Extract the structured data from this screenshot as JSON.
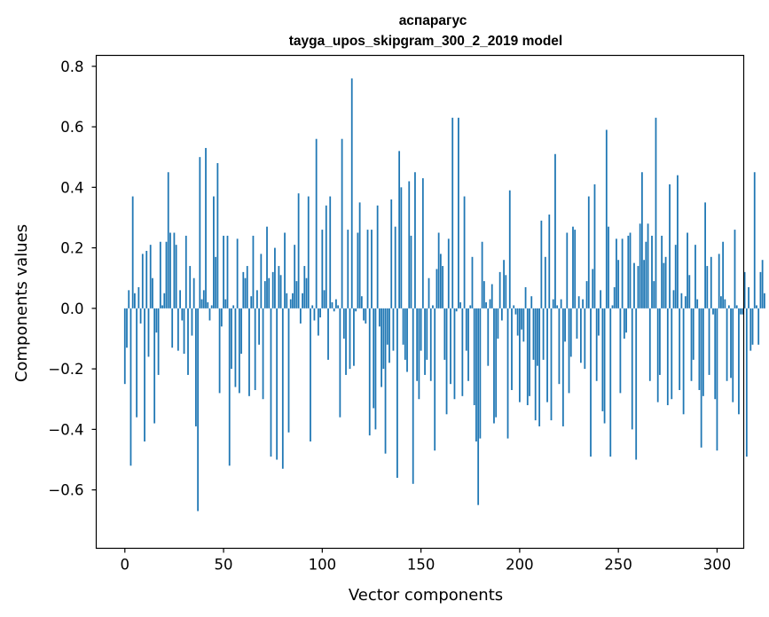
{
  "chart_data": {
    "type": "bar",
    "title": "аспарагус",
    "subtitle": "tayga_upos_skipgram_300_2_2019 model",
    "xlabel": "Vector components",
    "ylabel": "Components values",
    "xlim": [
      -14.5,
      313.5
    ],
    "ylim": [
      -0.793,
      0.836
    ],
    "xticks": [
      0,
      50,
      100,
      150,
      200,
      250,
      300
    ],
    "yticks": [
      -0.6,
      -0.4,
      -0.2,
      0.0,
      0.2,
      0.4,
      0.6,
      0.8
    ],
    "ytick_labels": [
      "−0.6",
      "−0.4",
      "−0.2",
      "0.0",
      "0.2",
      "0.4",
      "0.6",
      "0.8"
    ],
    "bar_color": "#1f77b4",
    "grid": false,
    "values": [
      -0.25,
      -0.13,
      0.06,
      -0.52,
      0.37,
      0.05,
      -0.36,
      0.07,
      -0.05,
      0.18,
      -0.44,
      0.19,
      -0.16,
      0.21,
      0.1,
      -0.38,
      -0.08,
      -0.22,
      0.22,
      0.01,
      0.05,
      0.22,
      0.45,
      0.25,
      -0.13,
      0.25,
      0.21,
      -0.14,
      0.06,
      -0.04,
      -0.15,
      0.24,
      -0.22,
      0.14,
      -0.09,
      0.1,
      -0.39,
      -0.67,
      0.5,
      0.03,
      0.06,
      0.53,
      0.02,
      -0.04,
      0.01,
      0.37,
      0.17,
      0.48,
      -0.28,
      -0.06,
      0.24,
      0.03,
      0.24,
      -0.52,
      -0.2,
      0.01,
      -0.26,
      0.23,
      -0.28,
      -0.15,
      0.12,
      0.1,
      0.14,
      -0.29,
      0.04,
      0.24,
      -0.27,
      0.06,
      -0.12,
      0.18,
      -0.3,
      0.09,
      0.27,
      0.1,
      -0.49,
      0.12,
      0.2,
      -0.5,
      0.14,
      0.11,
      -0.53,
      0.25,
      0.05,
      -0.41,
      0.03,
      0.05,
      0.21,
      0.09,
      0.38,
      -0.05,
      0.05,
      0.14,
      0.1,
      0.37,
      -0.44,
      0.01,
      -0.04,
      0.56,
      -0.09,
      -0.03,
      0.26,
      0.06,
      0.34,
      -0.17,
      0.37,
      0.02,
      -0.01,
      0.03,
      0.01,
      -0.36,
      0.56,
      -0.1,
      -0.22,
      0.26,
      -0.2,
      0.76,
      -0.19,
      -0.01,
      0.25,
      0.35,
      0.04,
      -0.04,
      -0.05,
      0.26,
      -0.42,
      0.26,
      -0.33,
      -0.4,
      0.34,
      -0.06,
      -0.26,
      -0.2,
      -0.48,
      -0.12,
      -0.18,
      0.36,
      -0.14,
      0.27,
      -0.56,
      0.52,
      0.4,
      -0.12,
      -0.17,
      -0.21,
      0.42,
      0.24,
      -0.58,
      0.45,
      -0.24,
      -0.3,
      -0.14,
      0.43,
      -0.22,
      -0.17,
      0.1,
      -0.24,
      0.01,
      -0.47,
      0.13,
      0.25,
      0.18,
      0.14,
      -0.17,
      -0.35,
      0.23,
      -0.25,
      0.63,
      -0.3,
      -0.01,
      0.63,
      0.02,
      -0.29,
      0.37,
      -0.14,
      -0.24,
      0.01,
      0.17,
      -0.32,
      -0.44,
      -0.65,
      -0.43,
      0.22,
      0.09,
      0.02,
      -0.19,
      0.03,
      0.08,
      -0.38,
      -0.36,
      -0.1,
      0.12,
      -0.04,
      0.16,
      0.11,
      -0.43,
      0.39,
      -0.27,
      0.01,
      -0.02,
      -0.09,
      -0.31,
      -0.07,
      -0.11,
      0.07,
      -0.32,
      -0.29,
      0.04,
      -0.17,
      -0.37,
      -0.19,
      -0.39,
      0.29,
      -0.17,
      0.17,
      -0.31,
      0.31,
      -0.37,
      0.03,
      0.51,
      0.01,
      -0.25,
      0.03,
      -0.39,
      -0.11,
      0.25,
      -0.28,
      -0.16,
      0.27,
      0.26,
      -0.1,
      0.04,
      -0.18,
      0.03,
      -0.2,
      0.09,
      0.37,
      -0.49,
      0.13,
      0.41,
      -0.24,
      -0.09,
      0.06,
      -0.34,
      -0.38,
      0.59,
      0.27,
      -0.49,
      0.01,
      0.07,
      0.23,
      0.16,
      -0.28,
      0.23,
      -0.1,
      -0.08,
      0.24,
      0.25,
      -0.4,
      0.15,
      -0.5,
      0.14,
      0.28,
      0.45,
      0.16,
      0.22,
      0.28,
      -0.24,
      0.24,
      0.09,
      0.63,
      -0.31,
      -0.22,
      0.24,
      0.15,
      0.17,
      -0.32,
      0.41,
      -0.3,
      0.06,
      0.21,
      0.44,
      -0.27,
      0.05,
      -0.35,
      0.04,
      0.25,
      0.11,
      -0.24,
      -0.17,
      0.21,
      0.03,
      -0.27,
      -0.46,
      -0.29,
      0.35,
      0.14,
      -0.22,
      0.17,
      -0.02,
      -0.3,
      -0.47,
      0.18,
      0.04,
      0.22,
      0.03,
      -0.24,
      0.01,
      -0.23,
      -0.31,
      0.26,
      0.01,
      -0.35,
      -0.02,
      -0.02,
      0.12,
      -0.49,
      0.07,
      -0.14,
      -0.12,
      0.45,
      0.01,
      -0.12,
      0.12,
      0.16,
      0.05
    ]
  }
}
